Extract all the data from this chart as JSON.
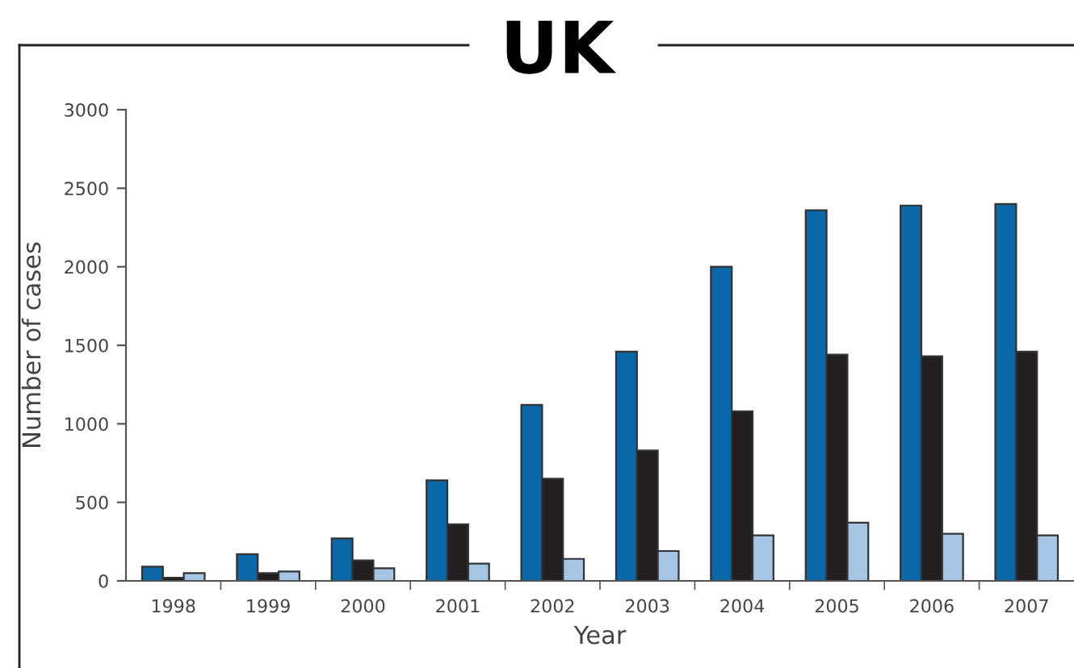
{
  "chart_data": {
    "type": "bar",
    "title": "UK",
    "xlabel": "Year",
    "ylabel": "Number of cases",
    "categories": [
      "1998",
      "1999",
      "2000",
      "2001",
      "2002",
      "2003",
      "2004",
      "2005",
      "2006",
      "2007"
    ],
    "series": [
      {
        "color": "#0a67a8",
        "values": [
          90,
          170,
          270,
          640,
          1120,
          1460,
          2000,
          2360,
          2390,
          2400
        ]
      },
      {
        "color": "#231f20",
        "values": [
          20,
          50,
          130,
          360,
          650,
          830,
          1080,
          1440,
          1430,
          1460
        ]
      },
      {
        "color": "#a6c4e4",
        "values": [
          50,
          60,
          80,
          110,
          140,
          190,
          290,
          370,
          300,
          290
        ]
      }
    ],
    "ylim": [
      0,
      3000
    ],
    "yticks": [
      0,
      500,
      1000,
      1500,
      2000,
      2500,
      3000
    ],
    "grid": false
  }
}
